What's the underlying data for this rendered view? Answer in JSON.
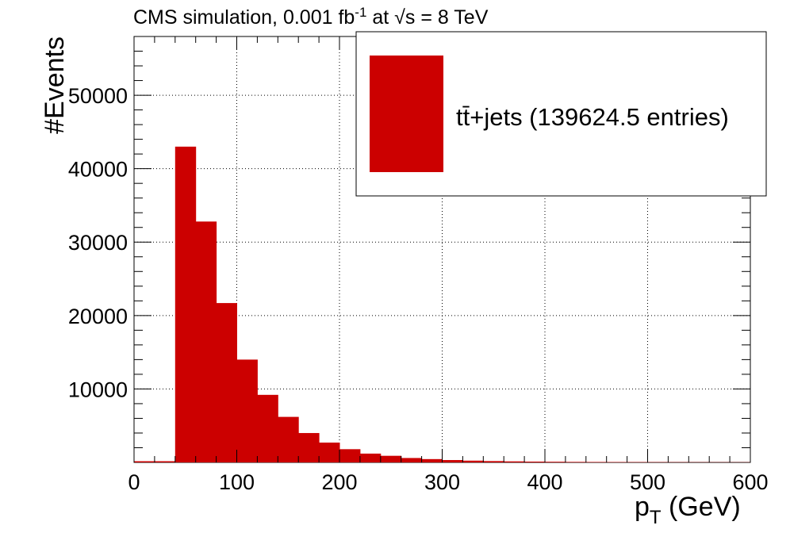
{
  "chart_data": {
    "type": "bar",
    "title_main": "CMS simulation, 0.001 fb",
    "title_exp": "-1",
    "title_at": " at ",
    "title_sqrt": "√",
    "title_s": "s",
    "title_energy": " = 8 TeV",
    "xlabel_main": "p",
    "xlabel_sub": "T",
    "xlabel_unit": " (GeV)",
    "ylabel": "#Events",
    "xlim": [
      0,
      600
    ],
    "ylim": [
      0,
      58000
    ],
    "xticks": [
      0,
      100,
      200,
      300,
      400,
      500,
      600
    ],
    "yticks": [
      10000,
      20000,
      30000,
      40000,
      50000
    ],
    "grid": true,
    "legend_position": "top-right",
    "series": [
      {
        "name": "tt̄+jets (139624.5 entries)",
        "color": "#cc0000",
        "bin_width": 20,
        "x": [
          0,
          20,
          40,
          60,
          80,
          100,
          120,
          140,
          160,
          180,
          200,
          220,
          240,
          260,
          280,
          300,
          320,
          340,
          360,
          380,
          400,
          420,
          440,
          460,
          480,
          500,
          520,
          540,
          560,
          580
        ],
        "values": [
          0,
          0,
          43000,
          32800,
          21700,
          14000,
          9200,
          6200,
          4000,
          2700,
          1800,
          1200,
          900,
          600,
          450,
          320,
          240,
          180,
          140,
          110,
          90,
          70,
          60,
          50,
          45,
          40,
          35,
          30,
          28,
          25
        ]
      }
    ]
  }
}
